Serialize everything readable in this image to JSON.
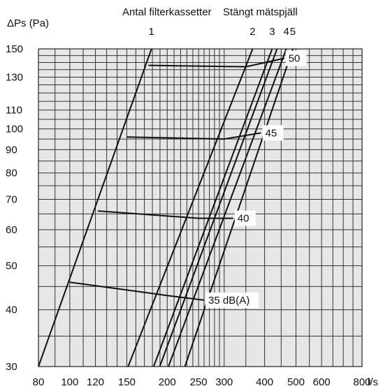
{
  "chart_data": {
    "type": "line",
    "title": "Antal filterkassetter",
    "title_extra": "Stängt mätspjäll",
    "ylabel": "ΔPs (Pa)",
    "xunit": "l/s",
    "xscale": "log",
    "yscale": "log",
    "xlim": [
      80,
      800
    ],
    "ylim": [
      30,
      150
    ],
    "grid": true,
    "background": "#e6e6e6",
    "x_ticks": [
      80,
      100,
      120,
      150,
      200,
      250,
      300,
      400,
      500,
      600,
      800
    ],
    "x_tick_labels": [
      "80",
      "100",
      "120",
      "150",
      "200",
      "250",
      "300",
      "400",
      "500",
      "600",
      "800"
    ],
    "y_ticks": [
      30,
      40,
      50,
      60,
      70,
      80,
      90,
      100,
      110,
      130,
      150
    ],
    "y_tick_labels": [
      "30",
      "40",
      "50",
      "60",
      "70",
      "80",
      "90",
      "100",
      "110",
      "130",
      "150"
    ],
    "x_grid": [
      80,
      90,
      100,
      110,
      120,
      130,
      140,
      150,
      160,
      170,
      180,
      190,
      200,
      210,
      220,
      230,
      240,
      250,
      260,
      270,
      280,
      290,
      300,
      350,
      400,
      450,
      500,
      550,
      600,
      650,
      700,
      750,
      800
    ],
    "y_grid": [
      30,
      35,
      40,
      45,
      50,
      55,
      60,
      65,
      70,
      75,
      80,
      85,
      90,
      95,
      100,
      105,
      110,
      115,
      120,
      125,
      130,
      135,
      140,
      145,
      150
    ],
    "filter_lines": [
      {
        "name": "1",
        "points": [
          [
            80,
            30
          ],
          [
            180,
            152
          ]
        ]
      },
      {
        "name": "2",
        "points": [
          [
            150,
            29.5
          ],
          [
            370,
            152
          ]
        ]
      },
      {
        "name": "3",
        "points": [
          [
            180,
            29.5
          ],
          [
            425,
            152
          ]
        ]
      },
      {
        "name": "4",
        "points": [
          [
            200,
            29.5
          ],
          [
            470,
            152
          ]
        ]
      },
      {
        "name": "5",
        "points": [
          [
            225,
            29.5
          ],
          [
            492,
            152
          ]
        ]
      },
      {
        "name": "4*",
        "points": [
          [
            188,
            29.5
          ],
          [
            440,
            152
          ]
        ]
      }
    ],
    "sound_curves": [
      {
        "name": "50",
        "label": "50",
        "points": [
          [
            175,
            138
          ],
          [
            350,
            137
          ],
          [
            460,
            143
          ]
        ]
      },
      {
        "name": "45",
        "label": "45",
        "points": [
          [
            150,
            96
          ],
          [
            300,
            95
          ],
          [
            390,
            98
          ]
        ]
      },
      {
        "name": "40",
        "label": "40",
        "points": [
          [
            122,
            66
          ],
          [
            250,
            63.6
          ],
          [
            320,
            63.6
          ]
        ]
      },
      {
        "name": "35",
        "label": "35 dB(A)",
        "points": [
          [
            100,
            46
          ],
          [
            200,
            43
          ],
          [
            260,
            42
          ]
        ]
      }
    ]
  }
}
